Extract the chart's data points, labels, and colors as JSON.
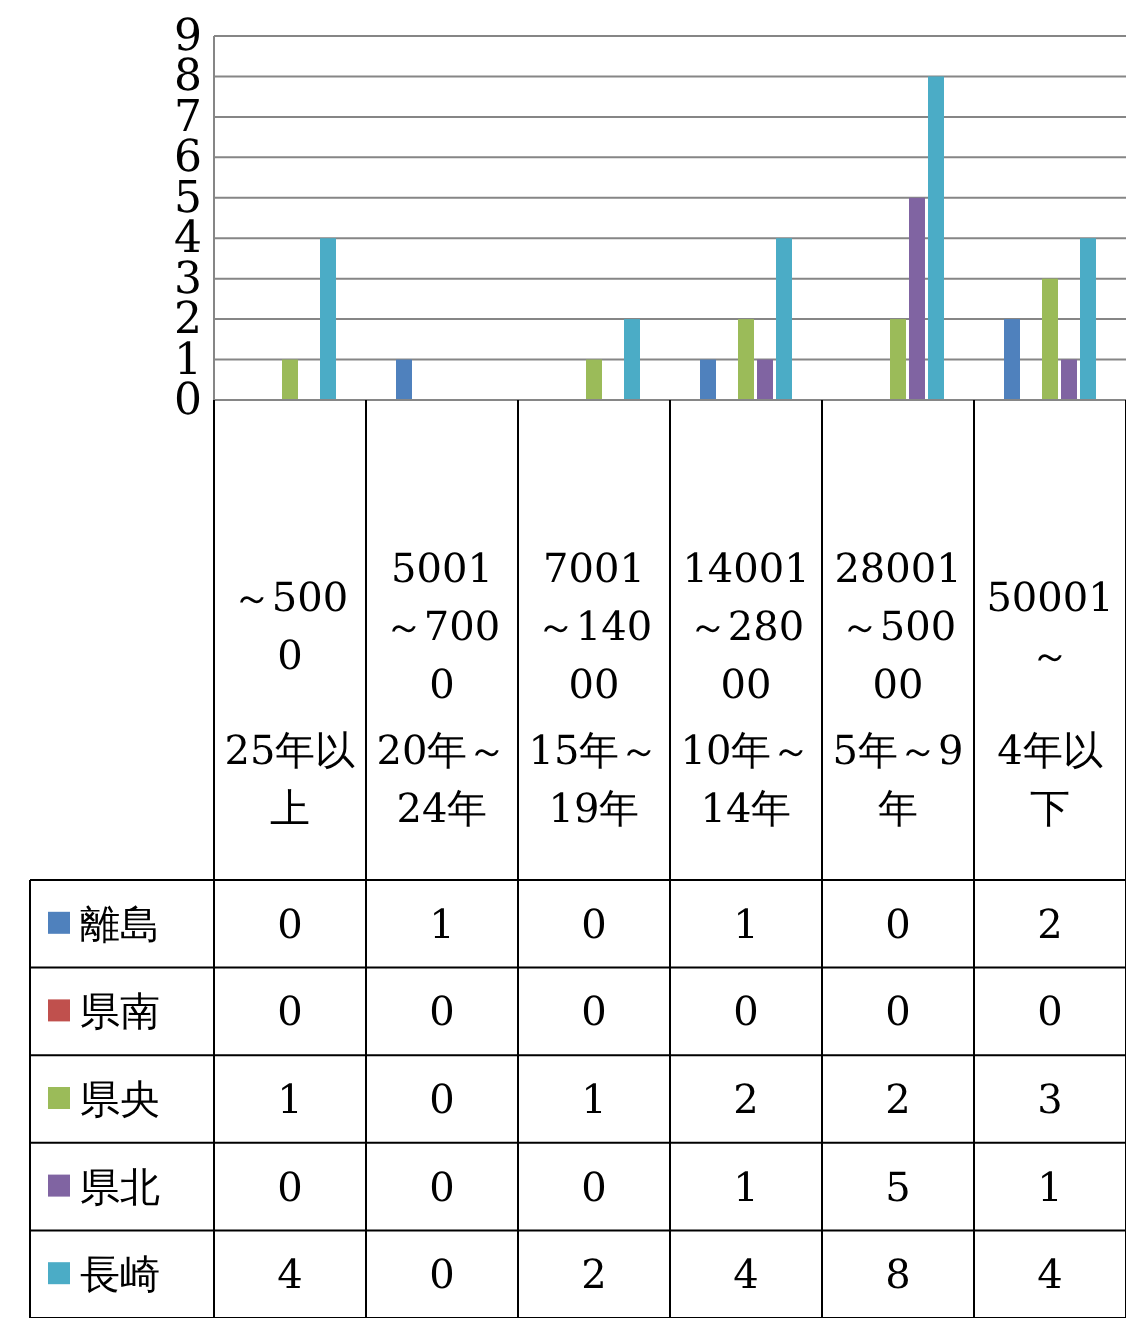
{
  "chart_data": {
    "type": "bar",
    "categories": [
      "～5000\n25年以上",
      "5001～7000\n20年～24年",
      "7001～14000\n15年～19年",
      "14001～28000\n10年～14年",
      "28001～50000\n5年～9年",
      "50001～\n4年以下"
    ],
    "series": [
      {
        "name": "離島",
        "color": "#4f81bd",
        "values": [
          0,
          1,
          0,
          1,
          0,
          2
        ]
      },
      {
        "name": "県南",
        "color": "#c0504d",
        "values": [
          0,
          0,
          0,
          0,
          0,
          0
        ]
      },
      {
        "name": "県央",
        "color": "#9bbb59",
        "values": [
          1,
          0,
          1,
          2,
          2,
          3
        ]
      },
      {
        "name": "県北",
        "color": "#8064a2",
        "values": [
          0,
          0,
          0,
          1,
          5,
          1
        ]
      },
      {
        "name": "長崎",
        "color": "#4bacc6",
        "values": [
          4,
          0,
          2,
          4,
          8,
          4
        ]
      }
    ],
    "ylim": [
      0,
      9
    ],
    "yticks": [
      0,
      1,
      2,
      3,
      4,
      5,
      6,
      7,
      8,
      9
    ],
    "grid": "y",
    "legend": "bottom",
    "data_labels": true
  }
}
